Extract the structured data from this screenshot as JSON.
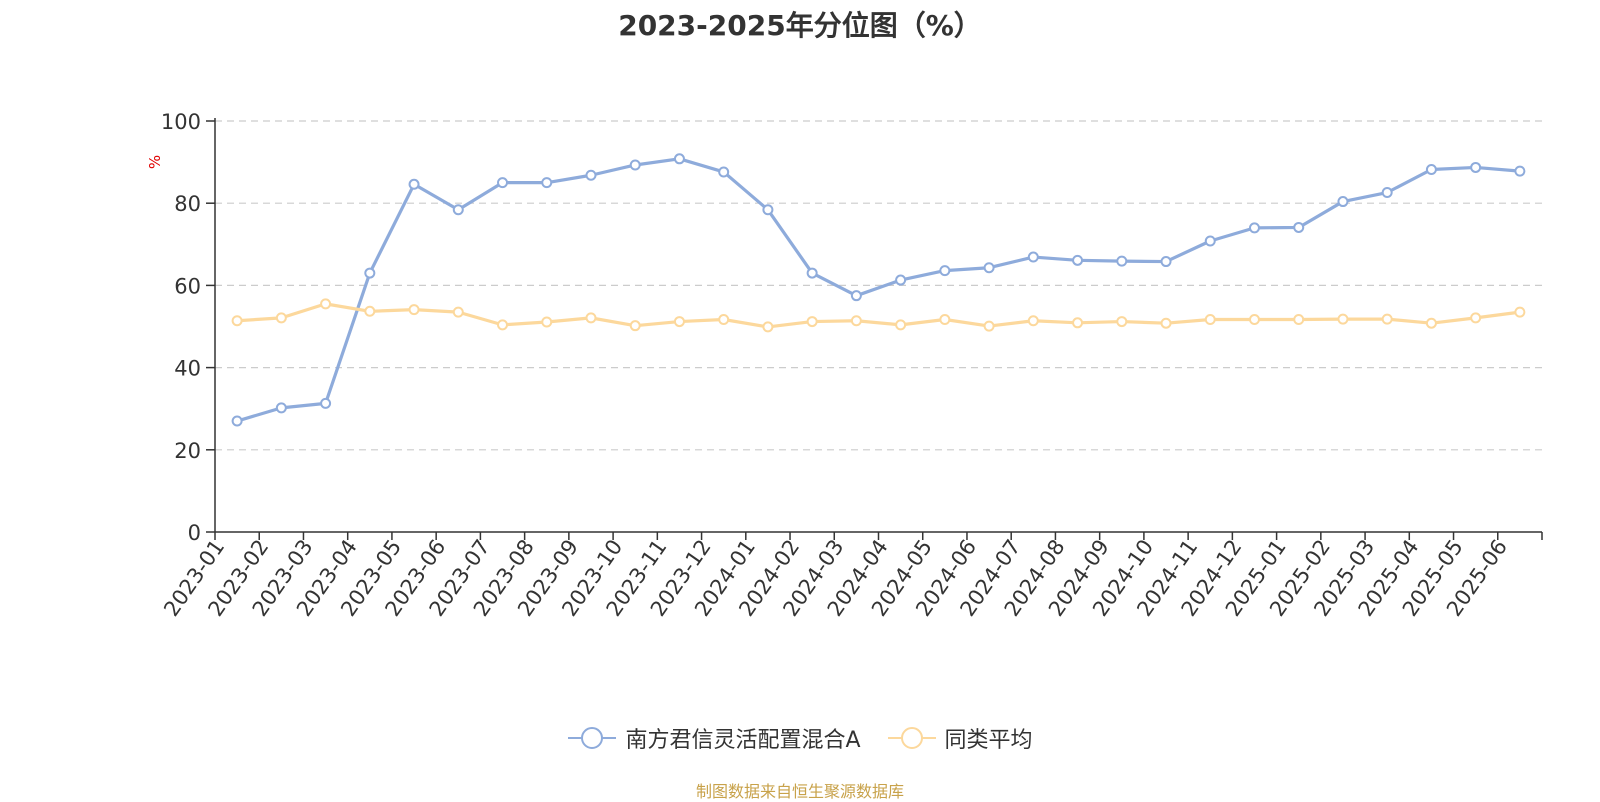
{
  "title": "2023-2025年分位图（%）",
  "source": "制图数据来自恒生聚源数据库",
  "chart_data": {
    "type": "line",
    "title": "2023-2025年分位图（%）",
    "ylabel": "%",
    "ylim": [
      0,
      100
    ],
    "yticks": [
      0,
      20,
      40,
      60,
      80,
      100
    ],
    "grid": true,
    "legend_position": "bottom-center",
    "categories": [
      "2023-01",
      "2023-02",
      "2023-03",
      "2023-04",
      "2023-05",
      "2023-06",
      "2023-07",
      "2023-08",
      "2023-09",
      "2023-10",
      "2023-11",
      "2023-12",
      "2024-01",
      "2024-02",
      "2024-03",
      "2024-04",
      "2024-05",
      "2024-06",
      "2024-07",
      "2024-08",
      "2024-09",
      "2024-10",
      "2024-11",
      "2024-12",
      "2025-01",
      "2025-02",
      "2025-03",
      "2025-04",
      "2025-05",
      "2025-06"
    ],
    "series": [
      {
        "name": "南方君信灵活配置混合A",
        "color": "#8eabdb",
        "values": [
          27.0,
          30.2,
          31.3,
          63.0,
          84.6,
          78.4,
          85.0,
          85.0,
          86.8,
          89.3,
          90.8,
          87.6,
          78.4,
          63.0,
          57.5,
          61.3,
          63.6,
          64.3,
          66.9,
          66.1,
          65.9,
          65.8,
          70.8,
          74.0,
          74.1,
          80.4,
          82.6,
          88.2,
          88.7,
          87.8
        ]
      },
      {
        "name": "同类平均",
        "color": "#fcd89c",
        "values": [
          51.4,
          52.1,
          55.5,
          53.7,
          54.1,
          53.5,
          50.4,
          51.1,
          52.1,
          50.2,
          51.2,
          51.7,
          49.9,
          51.2,
          51.4,
          50.4,
          51.7,
          50.1,
          51.4,
          50.9,
          51.2,
          50.8,
          51.7,
          51.7,
          51.7,
          51.8,
          51.8,
          50.8,
          52.1,
          53.5
        ]
      }
    ]
  }
}
